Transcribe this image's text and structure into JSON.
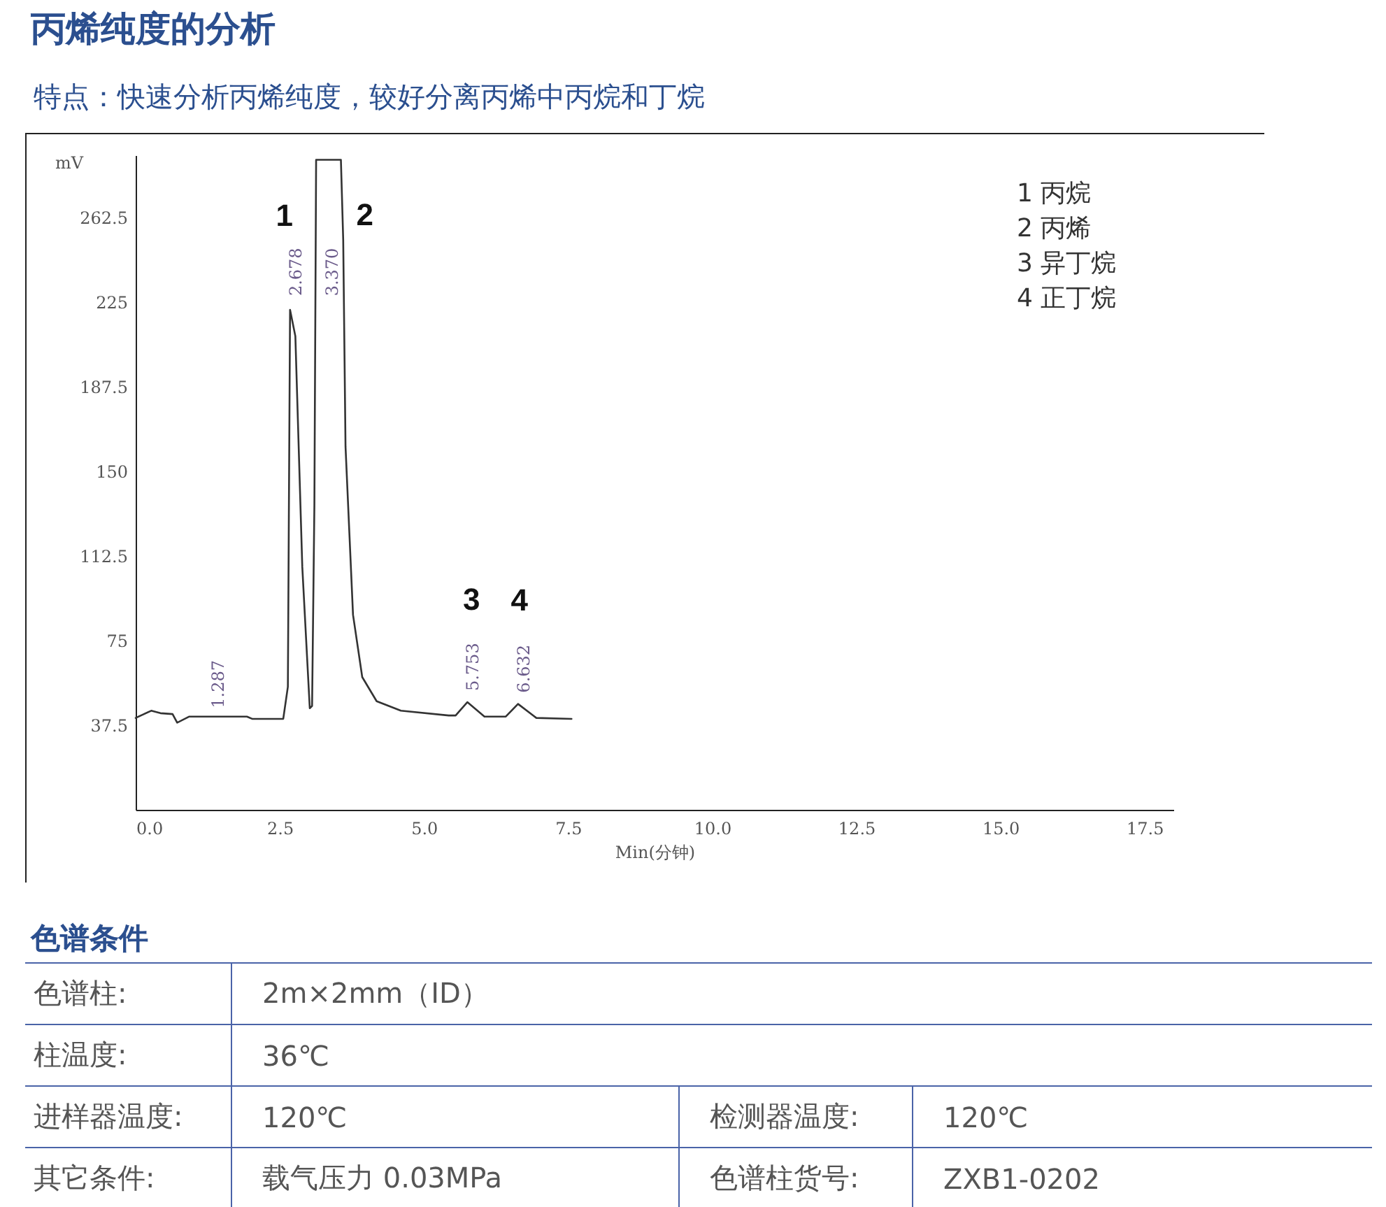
{
  "chart_data": {
    "type": "line",
    "title": "丙烯纯度的分析",
    "subtitle": "特点：快速分析丙烯纯度，较好分离丙烯中丙烷和丁烷",
    "xlabel": "Min(分钟)",
    "ylabel": "mV",
    "x": [
      0,
      0.27,
      0.43,
      0.64,
      0.72,
      0.93,
      1.287,
      1.93,
      2.02,
      2.56,
      2.64,
      2.678,
      2.77,
      2.89,
      3.02,
      3.06,
      3.1,
      3.13,
      3.37,
      3.56,
      3.6,
      3.64,
      3.77,
      3.93,
      4.18,
      4.6,
      5.43,
      5.55,
      5.753,
      6.05,
      6.42,
      6.632,
      6.95,
      7.56
    ],
    "series": [
      {
        "color": "#333333",
        "values": [
          40.7,
          43.9,
          42.8,
          42.4,
          38.6,
          41.3,
          41.3,
          41.3,
          40.3,
          40.3,
          54.5,
          221.5,
          209.8,
          107.7,
          45,
          46,
          135,
          288,
          288,
          288,
          252.4,
          160.9,
          86.4,
          58.8,
          48.1,
          43.9,
          41.8,
          41.8,
          47.7,
          41.3,
          41.3,
          46.9,
          40.7,
          40.3
        ]
      }
    ],
    "xlim": [
      0,
      18
    ],
    "ylim": [
      0,
      290
    ],
    "xticks": [
      {
        "value": 0,
        "label": "0.0"
      },
      {
        "value": 2.5,
        "label": "2.5"
      },
      {
        "value": 5,
        "label": "5.0"
      },
      {
        "value": 7.5,
        "label": "7.5"
      },
      {
        "value": 10,
        "label": "10.0"
      },
      {
        "value": 12.5,
        "label": "12.5"
      },
      {
        "value": 15,
        "label": "15.0"
      },
      {
        "value": 17.5,
        "label": "17.5"
      }
    ],
    "yticks": [
      37.5,
      75,
      112.5,
      150,
      187.5,
      225,
      262.5
    ],
    "grid": false,
    "marker": "none",
    "line_style": "solid",
    "annotations": [
      {
        "text": "1",
        "x": 2.678,
        "y": 221.5
      },
      {
        "text": "2",
        "x": 3.37,
        "y": 288
      },
      {
        "text": "3",
        "x": 5.753,
        "y": 47.7
      },
      {
        "text": "4",
        "x": 6.632,
        "y": 46.9
      },
      {
        "text": "1.287",
        "x": 1.287,
        "y": 41.3
      },
      {
        "text": "2.678",
        "x": 2.678,
        "y": 221.5
      },
      {
        "text": "3.370",
        "x": 3.6,
        "y": 252.4
      },
      {
        "text": "5.753",
        "x": 5.753,
        "y": 47.7
      },
      {
        "text": "6.632",
        "x": 6.632,
        "y": 46.9
      },
      "1 丙烷",
      "2 丙烯",
      "3 异丁烷",
      "4 正丁烷",
      "色谱条件",
      "色谱柱:",
      "2m×2mm（ID）",
      "柱温度:",
      "36℃",
      "进样器温度:",
      "120℃",
      "检测器温度:",
      "120℃",
      "其它条件:",
      "载气压力 0.03MPa",
      "色谱柱货号:",
      "ZXB1-0202"
    ]
  }
}
